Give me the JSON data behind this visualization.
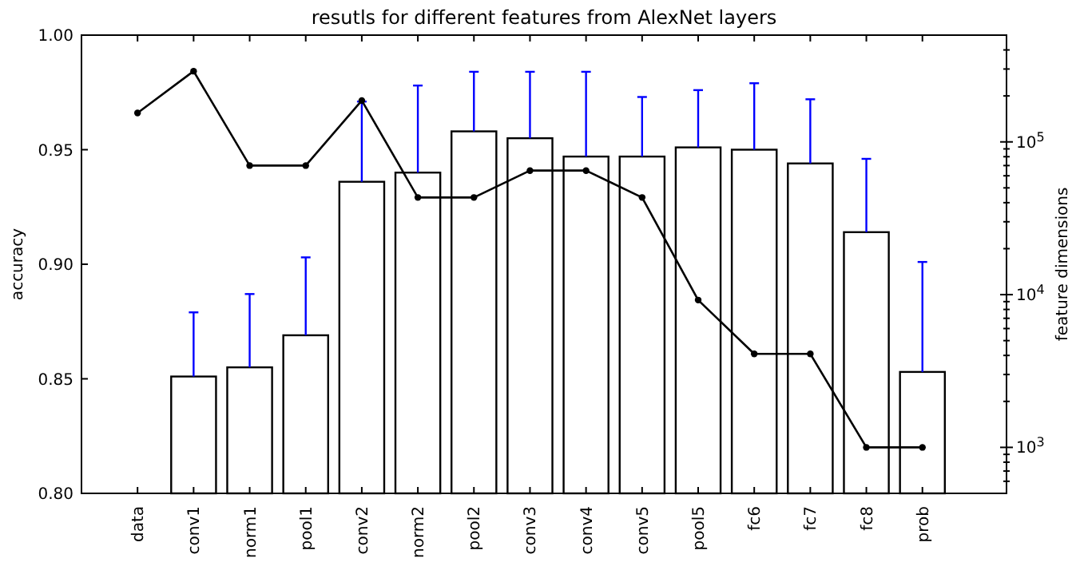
{
  "chart_data": {
    "type": "bar",
    "title": "resutls for different features from AlexNet layers",
    "xlabel": null,
    "ylabel": "accuracy",
    "y2label": "feature dimensions",
    "categories": [
      "data",
      "conv1",
      "norm1",
      "pool1",
      "conv2",
      "norm2",
      "pool2",
      "conv3",
      "conv4",
      "conv5",
      "pool5",
      "fc6",
      "fc7",
      "fc8",
      "prob"
    ],
    "series": [
      {
        "color": "#ffffff",
        "values": [
          null,
          0.851,
          0.855,
          0.869,
          0.936,
          0.94,
          0.958,
          0.955,
          0.947,
          0.947,
          0.951,
          0.95,
          0.944,
          0.914,
          0.853
        ],
        "errors": [
          null,
          [
            0.851,
            0.879
          ],
          [
            0.855,
            0.887
          ],
          [
            0.869,
            0.903
          ],
          [
            0.936,
            0.971
          ],
          [
            0.94,
            0.978
          ],
          [
            0.958,
            0.984
          ],
          [
            0.955,
            0.984
          ],
          [
            0.947,
            0.984
          ],
          [
            0.947,
            0.973
          ],
          [
            0.951,
            0.976
          ],
          [
            0.95,
            0.979
          ],
          [
            0.944,
            0.972
          ],
          [
            0.914,
            0.946
          ],
          [
            0.853,
            0.901
          ]
        ]
      },
      {
        "type": "line",
        "axis": "y2",
        "color": "#000000",
        "marker": "circle",
        "values": [
          154587,
          290400,
          69984,
          69984,
          186624,
          43264,
          43264,
          64896,
          64896,
          43264,
          9216,
          4096,
          4096,
          1000,
          1000
        ]
      }
    ],
    "ylim": [
      0.8,
      1.0
    ],
    "yticks": [
      {
        "value": 0.8,
        "label": "0.80"
      },
      {
        "value": 0.85,
        "label": "0.85"
      },
      {
        "value": 0.9,
        "label": "0.90"
      },
      {
        "value": 0.95,
        "label": "0.95"
      },
      {
        "value": 1.0,
        "label": "1.00"
      }
    ],
    "log": "y2",
    "y2lim": [
      500,
      500000
    ],
    "y2ticks": [
      {
        "value": 600,
        "label": null
      },
      {
        "value": 700,
        "label": null
      },
      {
        "value": 800,
        "label": null
      },
      {
        "value": 900,
        "label": null
      },
      {
        "value": 1000,
        "label": "10$^{3}$"
      },
      {
        "value": 2000,
        "label": null
      },
      {
        "value": 3000,
        "label": null
      },
      {
        "value": 4000,
        "label": null
      },
      {
        "value": 5000,
        "label": null
      },
      {
        "value": 6000,
        "label": null
      },
      {
        "value": 7000,
        "label": null
      },
      {
        "value": 8000,
        "label": null
      },
      {
        "value": 9000,
        "label": null
      },
      {
        "value": 10000,
        "label": "10$^{4}$"
      },
      {
        "value": 20000,
        "label": null
      },
      {
        "value": 30000,
        "label": null
      },
      {
        "value": 40000,
        "label": null
      },
      {
        "value": 50000,
        "label": null
      },
      {
        "value": 60000,
        "label": null
      },
      {
        "value": 70000,
        "label": null
      },
      {
        "value": 80000,
        "label": null
      },
      {
        "value": 90000,
        "label": null
      },
      {
        "value": 100000,
        "label": "10$^{5}$"
      },
      {
        "value": 200000,
        "label": null
      },
      {
        "value": 300000,
        "label": null
      },
      {
        "value": 400000,
        "label": null
      }
    ],
    "grid": false
  }
}
